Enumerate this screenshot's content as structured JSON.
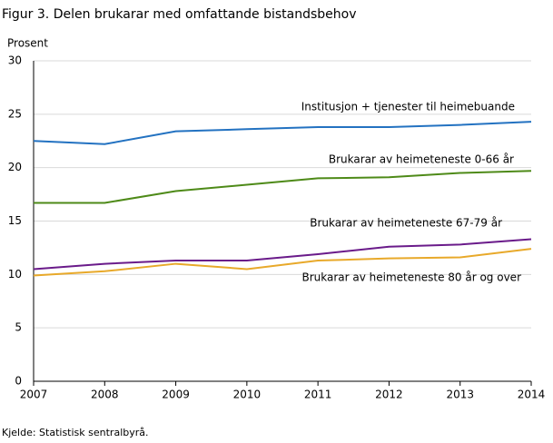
{
  "chart_data": {
    "type": "line",
    "title": "Figur 3. Delen  brukarar med omfattande bistandsbehov",
    "y_label": "Prosent",
    "source": "Kjelde: Statistisk sentralbyrå.",
    "x": [
      2007,
      2008,
      2009,
      2010,
      2011,
      2012,
      2013,
      2014
    ],
    "xlim": [
      2007,
      2014
    ],
    "xticks": [
      2007,
      2008,
      2009,
      2010,
      2011,
      2012,
      2013,
      2014
    ],
    "ylim": [
      0,
      30
    ],
    "yticks": [
      0,
      5,
      10,
      15,
      20,
      25,
      30
    ],
    "grid": true,
    "series": [
      {
        "name": "Institusjon + tjenester til heimebuande",
        "color": "#2372c1",
        "values": [
          22.5,
          22.2,
          23.4,
          23.6,
          23.8,
          23.8,
          24.0,
          24.3
        ]
      },
      {
        "name": "Brukarar  av heimeteneste  0-66  år",
        "color": "#4e8a18",
        "values": [
          16.7,
          16.7,
          17.8,
          18.4,
          19.0,
          19.1,
          19.5,
          19.7
        ]
      },
      {
        "name": "Brukarar  av heimeteneste  67-79  år",
        "color": "#6a1b8a",
        "values": [
          10.5,
          11.0,
          11.3,
          11.3,
          11.9,
          12.6,
          12.8,
          13.3
        ]
      },
      {
        "name": "Brukarar  av heimeteneste  80 år og over",
        "color": "#e8a92a",
        "values": [
          9.9,
          10.3,
          11.0,
          10.5,
          11.3,
          11.5,
          11.6,
          12.4
        ]
      }
    ]
  }
}
